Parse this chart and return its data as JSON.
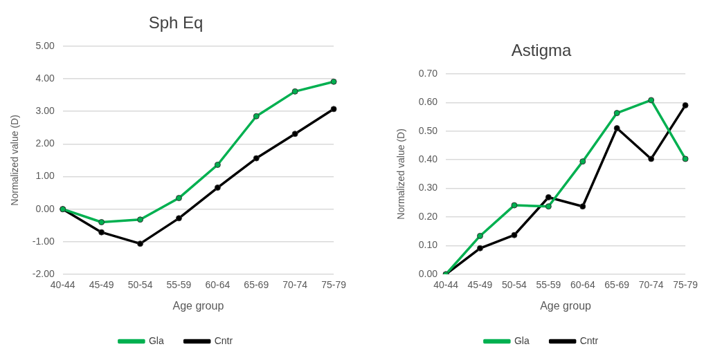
{
  "chart_data": [
    {
      "type": "line",
      "title": "Sph Eq",
      "xlabel": "Age group",
      "ylabel": "Normalized value (D)",
      "categories": [
        "40-44",
        "45-49",
        "50-54",
        "55-59",
        "60-64",
        "65-69",
        "70-74",
        "75-79"
      ],
      "series": [
        {
          "name": "Gla",
          "color": "#00b050",
          "values": [
            0,
            -0.4,
            -0.32,
            0.34,
            1.36,
            2.85,
            3.61,
            3.91
          ]
        },
        {
          "name": "Cntr",
          "color": "#000000",
          "values": [
            0,
            -0.71,
            -1.06,
            -0.28,
            0.66,
            1.56,
            2.31,
            3.07
          ]
        }
      ],
      "ylim": [
        -2,
        5
      ],
      "yticks": [
        {
          "value": -2,
          "label": "-2.00"
        },
        {
          "value": -1,
          "label": "-1.00"
        },
        {
          "value": 0,
          "label": "0.00"
        },
        {
          "value": 1,
          "label": "1.00"
        },
        {
          "value": 2,
          "label": "2.00"
        },
        {
          "value": 3,
          "label": "3.00"
        },
        {
          "value": 4,
          "label": "4.00"
        },
        {
          "value": 5,
          "label": "5.00"
        }
      ],
      "grid": "y",
      "legend": "bottom",
      "marker": "circle",
      "line_style": "solid"
    },
    {
      "type": "line",
      "title": "Astigma",
      "xlabel": "Age group",
      "ylabel": "Normalized value (D)",
      "categories": [
        "40-44",
        "45-49",
        "50-54",
        "55-59",
        "60-64",
        "65-69",
        "70-74",
        "75-79"
      ],
      "series": [
        {
          "name": "Gla",
          "color": "#00b050",
          "values": [
            0,
            0.134,
            0.241,
            0.237,
            0.394,
            0.563,
            0.608,
            0.403
          ]
        },
        {
          "name": "Cntr",
          "color": "#000000",
          "values": [
            0,
            0.091,
            0.137,
            0.269,
            0.237,
            0.51,
            0.403,
            0.59
          ]
        }
      ],
      "ylim": [
        0,
        0.7
      ],
      "yticks": [
        {
          "value": 0,
          "label": "0.00"
        },
        {
          "value": 0.1,
          "label": "0.10"
        },
        {
          "value": 0.2,
          "label": "0.20"
        },
        {
          "value": 0.3,
          "label": "0.30"
        },
        {
          "value": 0.4,
          "label": "0.40"
        },
        {
          "value": 0.5,
          "label": "0.50"
        },
        {
          "value": 0.6,
          "label": "0.60"
        },
        {
          "value": 0.7,
          "label": "0.70"
        }
      ],
      "grid": "y",
      "legend": "bottom",
      "marker": "circle",
      "line_style": "solid"
    }
  ]
}
